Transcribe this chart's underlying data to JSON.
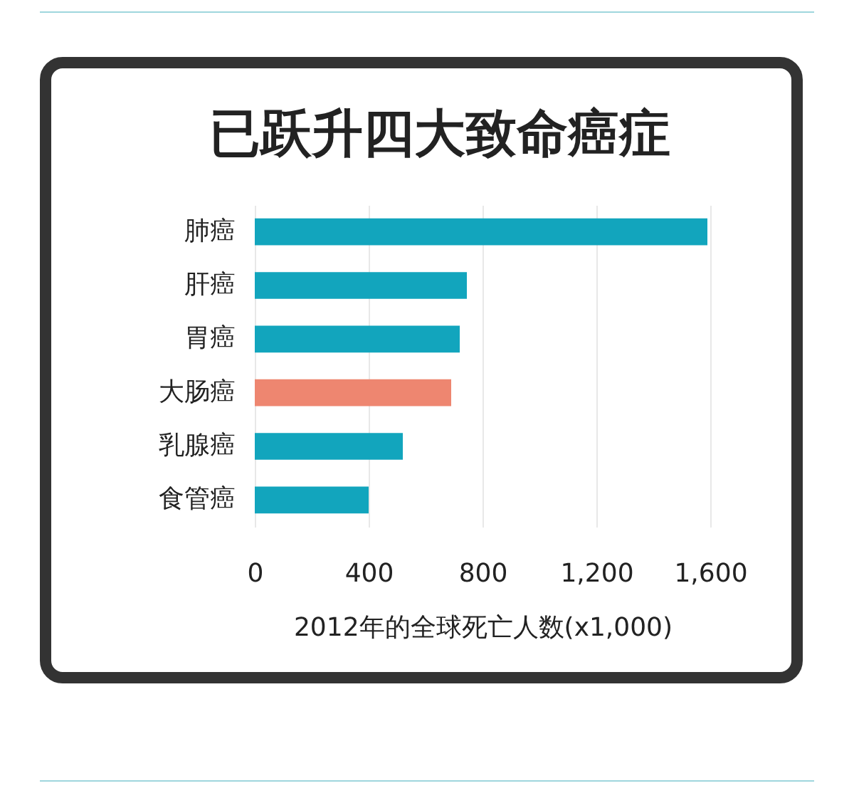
{
  "chart_data": {
    "type": "bar",
    "orientation": "horizontal",
    "title": "已跃升四大致命癌症",
    "xlabel": "2012年的全球死亡人数(x1,000)",
    "categories": [
      "肺癌",
      "肝癌",
      "胃癌",
      "大肠癌",
      "乳腺癌",
      "食管癌"
    ],
    "values": [
      1590,
      745,
      720,
      690,
      520,
      400
    ],
    "colors": [
      "#12a5bd",
      "#12a5bd",
      "#12a5bd",
      "#ee8670",
      "#12a5bd",
      "#12a5bd"
    ],
    "xlim": [
      0,
      1600
    ],
    "xticks": [
      0,
      400,
      800,
      {
        "value": 1200,
        "label": "1,200"
      },
      {
        "value": 1600,
        "label": "1,600"
      }
    ],
    "grid": "x"
  }
}
